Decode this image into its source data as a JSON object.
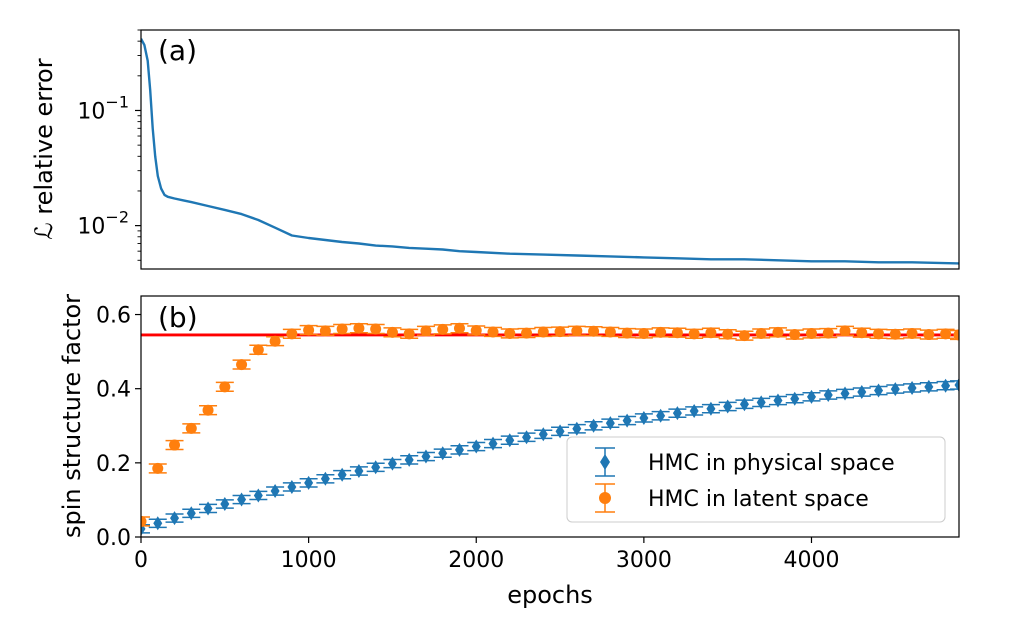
{
  "chart_data": [
    {
      "type": "line",
      "panel_label": "(a)",
      "ylabel": "ℒ relative error",
      "yscale": "log",
      "xlim": [
        0,
        4880
      ],
      "ylim": [
        0.0042,
        0.5
      ],
      "y_ticks": [
        {
          "value": 0.1,
          "base": "10",
          "exp": "−1"
        },
        {
          "value": 0.01,
          "base": "10",
          "exp": "−2"
        }
      ],
      "color": "#1f77b4",
      "series": [
        {
          "x": [
            0,
            20,
            40,
            55,
            70,
            85,
            100,
            120,
            140,
            160,
            200,
            250,
            300,
            400,
            500,
            600,
            700,
            800,
            900,
            1000,
            1100,
            1200,
            1300,
            1400,
            1500,
            1600,
            1700,
            1800,
            1900,
            2000,
            2200,
            2400,
            2600,
            2800,
            3000,
            3200,
            3400,
            3600,
            3800,
            4000,
            4200,
            4400,
            4600,
            4880
          ],
          "y": [
            0.42,
            0.37,
            0.27,
            0.15,
            0.07,
            0.04,
            0.027,
            0.021,
            0.0185,
            0.0178,
            0.0172,
            0.0166,
            0.016,
            0.0148,
            0.0137,
            0.0126,
            0.0112,
            0.0096,
            0.0082,
            0.0078,
            0.0075,
            0.0072,
            0.007,
            0.0067,
            0.0066,
            0.0064,
            0.0063,
            0.0062,
            0.006,
            0.0059,
            0.0057,
            0.0056,
            0.0055,
            0.0054,
            0.0053,
            0.0052,
            0.0051,
            0.0051,
            0.005,
            0.0049,
            0.0049,
            0.0048,
            0.0048,
            0.0047
          ]
        }
      ]
    },
    {
      "type": "scatter",
      "panel_label": "(b)",
      "xlabel": "epochs",
      "ylabel": "spin structure factor",
      "xlim": [
        0,
        4880
      ],
      "ylim": [
        0.0,
        0.65
      ],
      "x_ticks": [
        0,
        1000,
        2000,
        3000,
        4000
      ],
      "y_ticks": [
        0.0,
        0.2,
        0.4,
        0.6
      ],
      "reference_line": {
        "y": 0.545,
        "color": "#ff0000"
      },
      "legend": {
        "placement": "lower-right"
      },
      "series": [
        {
          "name": "HMC in physical space",
          "marker": "diamond",
          "color": "#1f77b4",
          "x": [
            0,
            100,
            200,
            300,
            400,
            500,
            600,
            700,
            800,
            900,
            1000,
            1100,
            1200,
            1300,
            1400,
            1500,
            1600,
            1700,
            1800,
            1900,
            2000,
            2100,
            2200,
            2300,
            2400,
            2500,
            2600,
            2700,
            2800,
            2900,
            3000,
            3100,
            3200,
            3300,
            3400,
            3500,
            3600,
            3700,
            3800,
            3900,
            4000,
            4100,
            4200,
            4300,
            4400,
            4500,
            4600,
            4700,
            4800,
            4880
          ],
          "y": [
            0.022,
            0.037,
            0.051,
            0.064,
            0.077,
            0.089,
            0.101,
            0.112,
            0.124,
            0.135,
            0.146,
            0.157,
            0.168,
            0.178,
            0.188,
            0.198,
            0.208,
            0.217,
            0.226,
            0.235,
            0.244,
            0.252,
            0.261,
            0.269,
            0.277,
            0.285,
            0.292,
            0.3,
            0.307,
            0.314,
            0.321,
            0.327,
            0.334,
            0.34,
            0.346,
            0.352,
            0.358,
            0.363,
            0.368,
            0.373,
            0.378,
            0.383,
            0.387,
            0.391,
            0.395,
            0.399,
            0.402,
            0.405,
            0.408,
            0.41
          ],
          "error": 0.011
        },
        {
          "name": "HMC in latent space",
          "marker": "circle",
          "color": "#ff7f0e",
          "x": [
            0,
            100,
            200,
            300,
            400,
            500,
            600,
            700,
            800,
            900,
            1000,
            1100,
            1200,
            1300,
            1400,
            1500,
            1600,
            1700,
            1800,
            1900,
            2000,
            2100,
            2200,
            2300,
            2400,
            2500,
            2600,
            2700,
            2800,
            2900,
            3000,
            3100,
            3200,
            3300,
            3400,
            3500,
            3600,
            3700,
            3800,
            3900,
            4000,
            4100,
            4200,
            4300,
            4400,
            4500,
            4600,
            4700,
            4800,
            4880
          ],
          "y": [
            0.042,
            0.185,
            0.248,
            0.293,
            0.342,
            0.405,
            0.465,
            0.505,
            0.528,
            0.548,
            0.558,
            0.556,
            0.561,
            0.563,
            0.561,
            0.552,
            0.548,
            0.556,
            0.56,
            0.563,
            0.557,
            0.553,
            0.549,
            0.55,
            0.553,
            0.554,
            0.556,
            0.555,
            0.553,
            0.55,
            0.549,
            0.552,
            0.551,
            0.548,
            0.551,
            0.547,
            0.543,
            0.549,
            0.552,
            0.546,
            0.549,
            0.55,
            0.556,
            0.551,
            0.548,
            0.547,
            0.549,
            0.546,
            0.548,
            0.545
          ],
          "error": 0.012
        }
      ]
    }
  ]
}
